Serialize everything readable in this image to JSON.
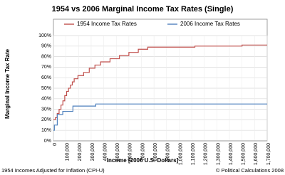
{
  "chart_data": {
    "type": "line",
    "drawstyle": "steps-post",
    "title": "1954 vs 2006 Marginal Income Tax Rates (Single)",
    "xlabel": "Income [2006 U.S. Dollars]",
    "ylabel": "Marginal Income Tax Rate",
    "notes": [
      "1954 Incomes Adjusted for Inflation (CPI-U)",
      "© Political Calculations 2008"
    ],
    "legend": "top",
    "grid": true,
    "xlim": [
      0,
      1700000
    ],
    "ylim": [
      0,
      100
    ],
    "xticks": [
      0,
      {
        "value": 100000,
        "label": "100,000"
      },
      {
        "value": 200000,
        "label": "200,000"
      },
      {
        "value": 300000,
        "label": "300,000"
      },
      {
        "value": 400000,
        "label": "400,000"
      },
      {
        "value": 500000,
        "label": "500,000"
      },
      {
        "value": 600000,
        "label": "600,000"
      },
      {
        "value": 700000,
        "label": "700,000"
      },
      {
        "value": 800000,
        "label": "800,000"
      },
      {
        "value": 900000,
        "label": "900,000"
      },
      {
        "value": 1000000,
        "label": "1,000,000"
      },
      {
        "value": 1100000,
        "label": "1,100,000"
      },
      {
        "value": 1200000,
        "label": "1,200,000"
      },
      {
        "value": 1300000,
        "label": "1,300,000"
      },
      {
        "value": 1400000,
        "label": "1,400,000"
      },
      {
        "value": 1500000,
        "label": "1,500,000"
      },
      {
        "value": 1600000,
        "label": "1,600,000"
      },
      {
        "value": 1700000,
        "label": "1,700,000"
      }
    ],
    "yticks": [
      {
        "value": 0,
        "label": "0%"
      },
      {
        "value": 10,
        "label": "10%"
      },
      {
        "value": 20,
        "label": "20%"
      },
      {
        "value": 30,
        "label": "30%"
      },
      {
        "value": 40,
        "label": "40%"
      },
      {
        "value": 50,
        "label": "50%"
      },
      {
        "value": 60,
        "label": "60%"
      },
      {
        "value": 70,
        "label": "70%"
      },
      {
        "value": 80,
        "label": "80%"
      },
      {
        "value": 90,
        "label": "90%"
      },
      {
        "value": 100,
        "label": "100%"
      }
    ],
    "series": [
      {
        "name": "1954 Income Tax Rates",
        "color": "#c0504d",
        "x": [
          0,
          15000,
          30000,
          45000,
          60000,
          75000,
          90000,
          105000,
          120000,
          135000,
          150000,
          165000,
          195000,
          240000,
          285000,
          330000,
          375000,
          450000,
          525000,
          600000,
          675000,
          750000,
          1125000,
          1500000,
          1700000
        ],
        "values": [
          20,
          22,
          26,
          30,
          34,
          38,
          43,
          47,
          50,
          53,
          56,
          59,
          62,
          65,
          69,
          72,
          75,
          78,
          81,
          84,
          87,
          89,
          90,
          91,
          91
        ]
      },
      {
        "name": "2006 Income Tax Rates",
        "color": "#4f81bd",
        "x": [
          0,
          7550,
          30650,
          74200,
          154800,
          336550,
          1700000
        ],
        "values": [
          10,
          15,
          25,
          28,
          33,
          35,
          35
        ]
      }
    ]
  }
}
